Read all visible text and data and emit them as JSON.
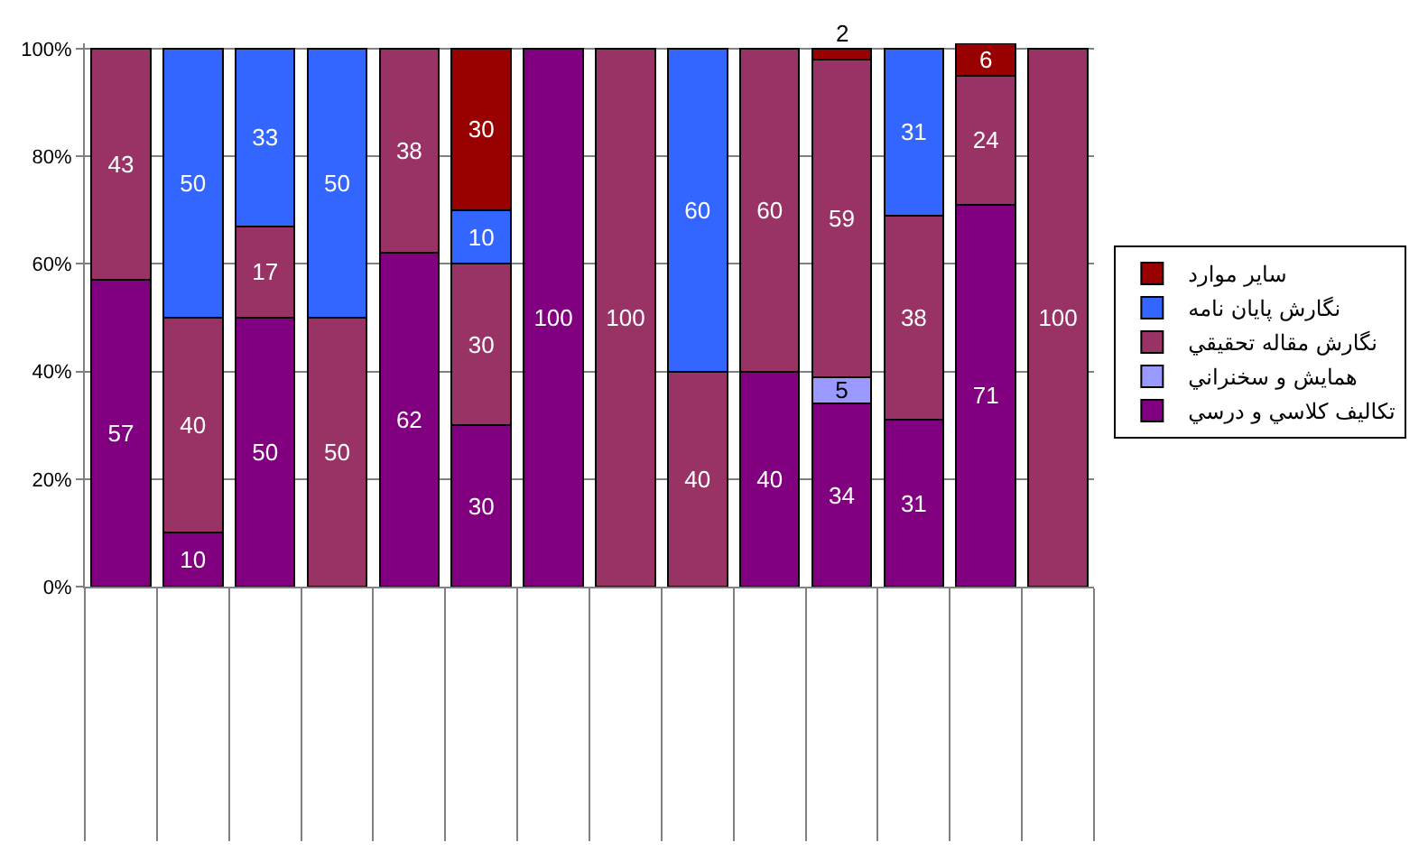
{
  "chart_data": {
    "type": "bar",
    "stacked": true,
    "categories": [
      null,
      null,
      null,
      null,
      null,
      null,
      null,
      null,
      null,
      null,
      null,
      null,
      null,
      null
    ],
    "series": [
      {
        "name": "تکاليف کلاسي و درسي",
        "color": "#800080",
        "values": [
          57,
          10,
          50,
          null,
          62,
          30,
          100,
          null,
          null,
          40,
          34,
          31,
          71,
          null
        ]
      },
      {
        "name": "همايش و سخنراني",
        "color": "#9999ff",
        "values": [
          null,
          null,
          null,
          null,
          null,
          null,
          null,
          null,
          null,
          null,
          5,
          null,
          null,
          null
        ]
      },
      {
        "name": "نگارش مقاله تحقيقي",
        "color": "#993366",
        "values": [
          43,
          40,
          17,
          50,
          38,
          30,
          null,
          100,
          40,
          60,
          59,
          38,
          24,
          100
        ]
      },
      {
        "name": "نگارش پايان نامه",
        "color": "#3366ff",
        "values": [
          null,
          50,
          33,
          50,
          null,
          10,
          null,
          null,
          60,
          null,
          null,
          31,
          null,
          null
        ]
      },
      {
        "name": "ساير موارد",
        "color": "#990000",
        "values": [
          null,
          null,
          null,
          null,
          null,
          30,
          null,
          null,
          null,
          null,
          2,
          null,
          6,
          null
        ]
      }
    ],
    "ylim": [
      0,
      101
    ],
    "yticks": [
      {
        "value": 0,
        "label": "0%"
      },
      {
        "value": 20,
        "label": "20%"
      },
      {
        "value": 40,
        "label": "40%"
      },
      {
        "value": 60,
        "label": "60%"
      },
      {
        "value": 80,
        "label": "80%"
      },
      {
        "value": 100,
        "label": "100%"
      }
    ],
    "grid": "y",
    "legend": "right",
    "data_labels": true
  }
}
